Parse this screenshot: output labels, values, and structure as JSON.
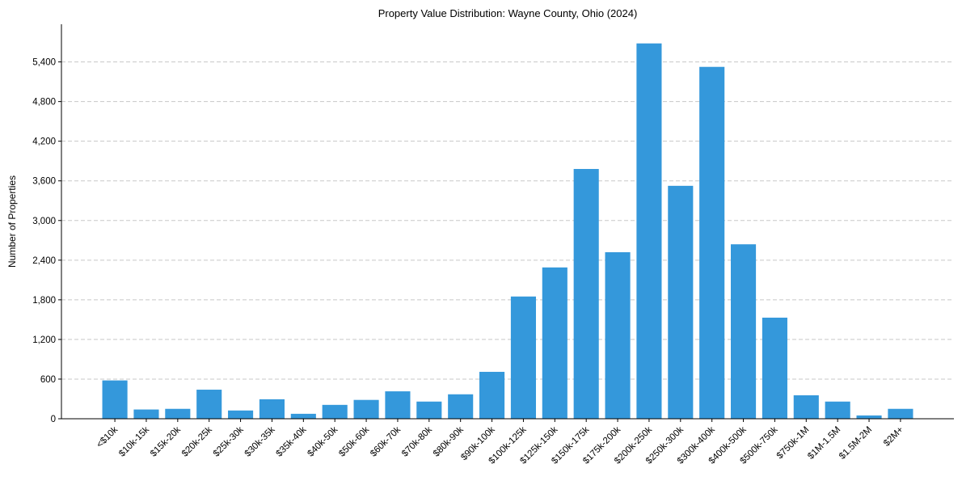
{
  "chart_data": {
    "type": "bar",
    "title": "Property Value Distribution: Wayne County, Ohio (2024)",
    "xlabel": "",
    "ylabel": "Number of Properties",
    "ylim": [
      0,
      5970
    ],
    "yticks": [
      0,
      600,
      1200,
      1800,
      2400,
      3000,
      3600,
      4200,
      4800,
      5400
    ],
    "ytick_labels": [
      "0",
      "600",
      "1,200",
      "1,800",
      "2,400",
      "3,000",
      "3,600",
      "4,200",
      "4,800",
      "5,400"
    ],
    "grid": "y-dashed",
    "bar_color": "#3498db",
    "categories": [
      "<$10k",
      "$10k-15k",
      "$15k-20k",
      "$20k-25k",
      "$25k-30k",
      "$30k-35k",
      "$35k-40k",
      "$40k-50k",
      "$50k-60k",
      "$60k-70k",
      "$70k-80k",
      "$80k-90k",
      "$90k-100k",
      "$100k-125k",
      "$125k-150k",
      "$150k-175k",
      "$175k-200k",
      "$200k-250k",
      "$250k-300k",
      "$300k-400k",
      "$400k-500k",
      "$500k-750k",
      "$750k-1M",
      "$1M-1.5M",
      "$1.5M-2M",
      "$2M+"
    ],
    "values": [
      580,
      140,
      150,
      440,
      125,
      295,
      75,
      210,
      285,
      415,
      260,
      370,
      710,
      1850,
      2290,
      3780,
      2520,
      5680,
      3525,
      5325,
      2640,
      1530,
      355,
      260,
      50,
      150
    ]
  }
}
